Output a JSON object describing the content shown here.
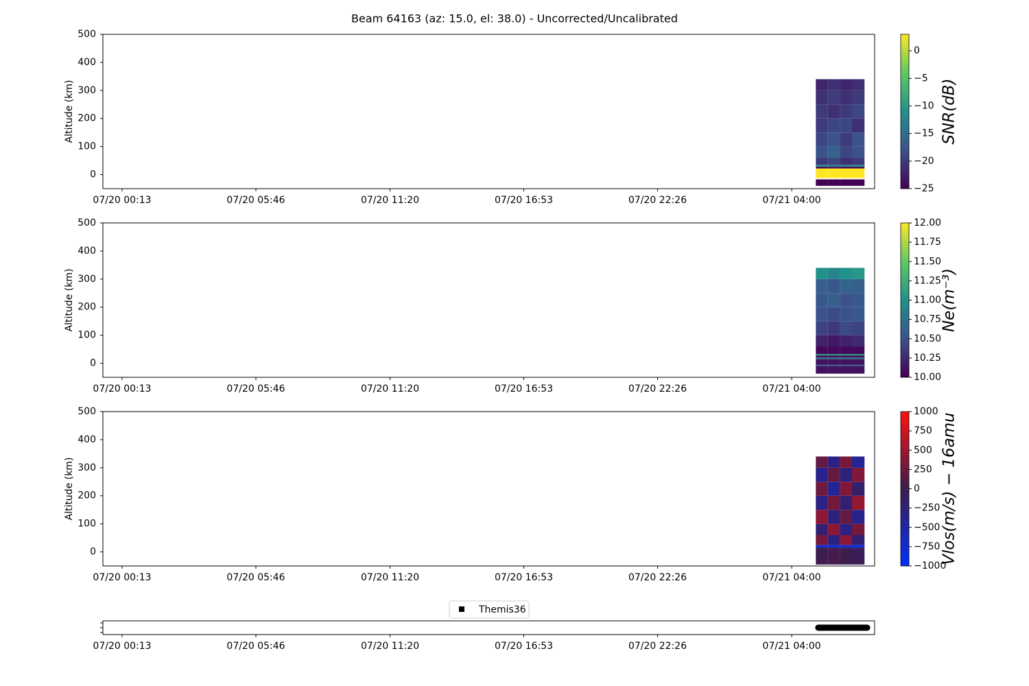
{
  "title": "Beam 64163 (az: 15.0, el: 38.0) - Uncorrected/Uncalibrated",
  "chart_data": [
    {
      "type": "heatmap",
      "ylabel": "Altitude (km)",
      "colorbar_label": "SNR(dB)",
      "cmap": "viridis",
      "xlim": [
        -0.58,
        31.44
      ],
      "ylim": [
        -50,
        500
      ],
      "yticks": [
        0,
        100,
        200,
        300,
        400,
        500
      ],
      "xticks": [
        {
          "value": 0.2167,
          "label": "07/20 00:13"
        },
        {
          "value": 5.7667,
          "label": "07/20 05:46"
        },
        {
          "value": 11.3333,
          "label": "07/20 11:20"
        },
        {
          "value": 16.8833,
          "label": "07/20 16:53"
        },
        {
          "value": 22.4333,
          "label": "07/20 22:26"
        },
        {
          "value": 28.0,
          "label": "07/21 04:00"
        }
      ],
      "clim": [
        -25,
        3
      ],
      "cticks": [
        {
          "value": -25,
          "label": "−25"
        },
        {
          "value": -20,
          "label": "−20"
        },
        {
          "value": -15,
          "label": "−15"
        },
        {
          "value": -10,
          "label": "−10"
        },
        {
          "value": -5,
          "label": "−5"
        },
        0
      ],
      "x_edges": [
        29.0,
        29.5,
        30.0,
        30.5,
        31.02
      ],
      "y_edges": [
        -40,
        -17,
        -12,
        22,
        28,
        35,
        60,
        100,
        150,
        200,
        250,
        300,
        340
      ],
      "values": [
        [
          -25,
          -25,
          -25,
          -25
        ],
        [
          null,
          null,
          null,
          null
        ],
        [
          3,
          3,
          3,
          3
        ],
        [
          -25,
          -24,
          -25,
          -25
        ],
        [
          -12,
          -14,
          -13,
          -12
        ],
        [
          -20,
          -19,
          -21,
          -20
        ],
        [
          -18,
          -16,
          -19,
          -18
        ],
        [
          -19,
          -18,
          -20,
          -18
        ],
        [
          -20,
          -19,
          -19,
          -21
        ],
        [
          -20,
          -21,
          -20,
          -19
        ],
        [
          -21,
          -20,
          -21,
          -20
        ],
        [
          -22,
          -21,
          -22,
          -21
        ]
      ]
    },
    {
      "type": "heatmap",
      "ylabel": "Altitude (km)",
      "colorbar_label": "Ne(m⁻³)",
      "cmap": "viridis",
      "xlim": [
        -0.58,
        31.44
      ],
      "ylim": [
        -50,
        500
      ],
      "yticks": [
        0,
        100,
        200,
        300,
        400,
        500
      ],
      "xticks": [
        {
          "value": 0.2167,
          "label": "07/20 00:13"
        },
        {
          "value": 5.7667,
          "label": "07/20 05:46"
        },
        {
          "value": 11.3333,
          "label": "07/20 11:20"
        },
        {
          "value": 16.8833,
          "label": "07/20 16:53"
        },
        {
          "value": 22.4333,
          "label": "07/20 22:26"
        },
        {
          "value": 28.0,
          "label": "07/21 04:00"
        }
      ],
      "clim": [
        10,
        12
      ],
      "cticks": [
        {
          "value": 10,
          "label": "10.00"
        },
        10.25,
        {
          "value": 10.5,
          "label": "10.50"
        },
        10.75,
        {
          "value": 11,
          "label": "11.00"
        },
        11.25,
        {
          "value": 11.5,
          "label": "11.50"
        },
        11.75,
        {
          "value": 12,
          "label": "12.00"
        }
      ],
      "x_edges": [
        29.0,
        29.5,
        30.0,
        30.5,
        31.02
      ],
      "y_edges": [
        -37,
        -10,
        -5,
        15,
        20,
        28,
        33,
        60,
        100,
        150,
        200,
        250,
        300,
        340
      ],
      "values": [
        [
          10.1,
          10.1,
          10.1,
          10.1
        ],
        [
          10.6,
          10.6,
          10.6,
          10.6
        ],
        [
          10.1,
          10.1,
          10.1,
          10.1
        ],
        [
          10.9,
          10.9,
          10.9,
          10.9
        ],
        [
          10.1,
          10.1,
          10.1,
          10.1
        ],
        [
          11.1,
          11.1,
          11.1,
          11.1
        ],
        [
          10.05,
          10.05,
          10.05,
          10.05
        ],
        [
          10.2,
          10.15,
          10.2,
          10.25
        ],
        [
          10.4,
          10.35,
          10.45,
          10.4
        ],
        [
          10.5,
          10.45,
          10.5,
          10.55
        ],
        [
          10.55,
          10.6,
          10.5,
          10.55
        ],
        [
          10.6,
          10.55,
          10.65,
          10.6
        ],
        [
          11.0,
          10.9,
          11.0,
          11.05
        ]
      ]
    },
    {
      "type": "heatmap",
      "ylabel": "Altitude (km)",
      "colorbar_label": "Vlos(m/s) − 16amu",
      "cmap": "bwr",
      "xlim": [
        -0.58,
        31.44
      ],
      "ylim": [
        -50,
        500
      ],
      "yticks": [
        0,
        100,
        200,
        300,
        400,
        500
      ],
      "xticks": [
        {
          "value": 0.2167,
          "label": "07/20 00:13"
        },
        {
          "value": 5.7667,
          "label": "07/20 05:46"
        },
        {
          "value": 11.3333,
          "label": "07/20 11:20"
        },
        {
          "value": 16.8833,
          "label": "07/20 16:53"
        },
        {
          "value": 22.4333,
          "label": "07/20 22:26"
        },
        {
          "value": 28.0,
          "label": "07/21 04:00"
        }
      ],
      "clim": [
        -1000,
        1000
      ],
      "cticks": [
        {
          "value": -1000,
          "label": "−1000"
        },
        {
          "value": -750,
          "label": "−750"
        },
        {
          "value": -500,
          "label": "−500"
        },
        {
          "value": -250,
          "label": "−250"
        },
        0,
        250,
        500,
        750,
        1000
      ],
      "x_edges": [
        29.0,
        29.5,
        30.0,
        30.5,
        31.02
      ],
      "y_edges": [
        -45,
        15,
        25,
        60,
        100,
        150,
        200,
        250,
        300,
        340
      ],
      "values": [
        [
          0,
          50,
          0,
          -50
        ],
        [
          -700,
          -650,
          -700,
          -750
        ],
        [
          300,
          -300,
          400,
          -200
        ],
        [
          -200,
          400,
          -300,
          300
        ],
        [
          400,
          -250,
          200,
          -350
        ],
        [
          -300,
          300,
          -200,
          450
        ],
        [
          250,
          -400,
          350,
          -150
        ],
        [
          -350,
          200,
          -250,
          350
        ],
        [
          200,
          -300,
          300,
          -400
        ]
      ]
    },
    {
      "type": "timeline",
      "xlim": [
        -0.58,
        31.44
      ],
      "xticks": [
        {
          "value": 0.2167,
          "label": "07/20 00:13"
        },
        {
          "value": 5.7667,
          "label": "07/20 05:46"
        },
        {
          "value": 11.3333,
          "label": "07/20 11:20"
        },
        {
          "value": 16.8833,
          "label": "07/20 16:53"
        },
        {
          "value": 22.4333,
          "label": "07/20 22:26"
        },
        {
          "value": 28.0,
          "label": "07/21 04:00"
        }
      ],
      "series": [
        {
          "name": "Themis36",
          "color": "#000000",
          "start": 29.1,
          "end": 31.13
        }
      ]
    }
  ]
}
